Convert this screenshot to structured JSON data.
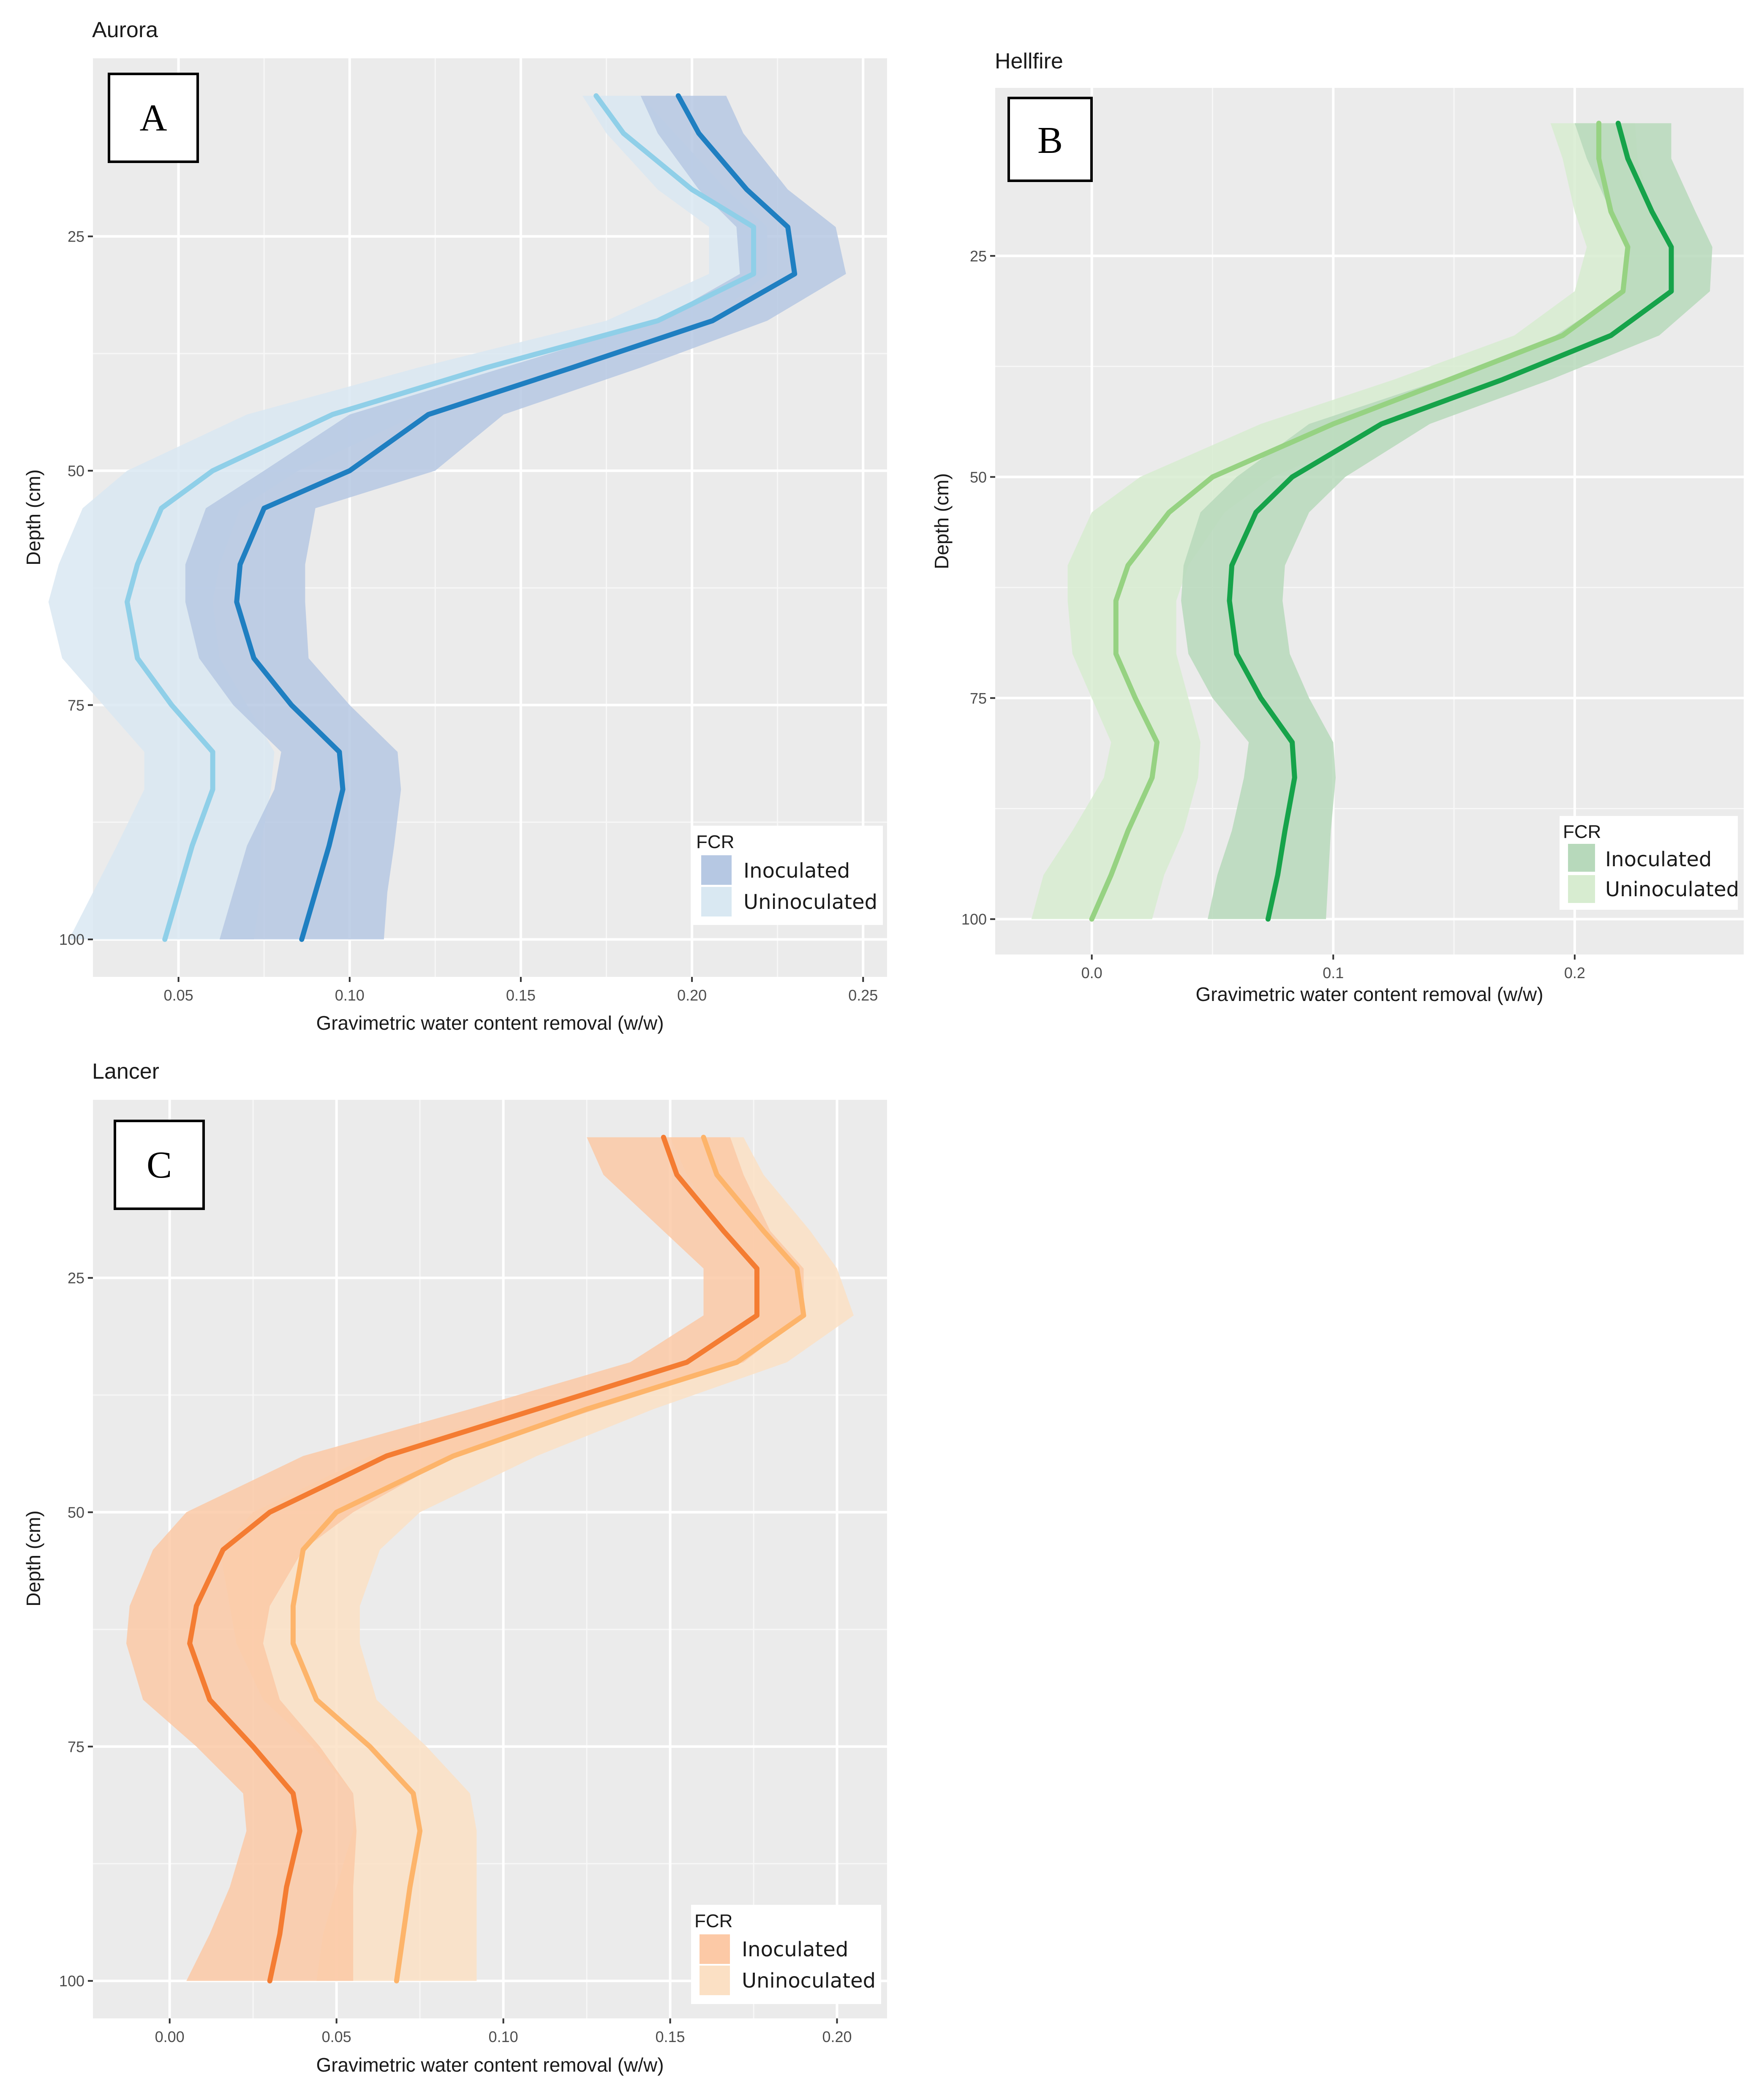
{
  "chart_data": [
    {
      "type": "line",
      "panel_label": "A",
      "title": "Aurora",
      "xlabel": "Gravimetric water content removal (w/w)",
      "ylabel": "Depth (cm)",
      "xlim": [
        0.025,
        0.257
      ],
      "ylim": [
        6,
        104
      ],
      "xticks": [
        0.05,
        0.1,
        0.15,
        0.2,
        0.25
      ],
      "xtick_labels": [
        "0.05",
        "0.10",
        "0.15",
        "0.20",
        "0.25"
      ],
      "yticks": [
        25,
        50,
        75,
        100
      ],
      "ytick_labels": [
        "25",
        "50",
        "75",
        "100"
      ],
      "legend_title": "FCR",
      "legend_position": "bottom-right",
      "series": [
        {
          "name": "Inoculated",
          "line_color": "#1f7fc1",
          "band_color": "#b6c8e3",
          "depth": [
            10,
            14,
            20,
            24,
            29,
            34,
            39,
            44,
            50,
            54,
            60,
            64,
            70,
            75,
            80,
            84,
            90,
            95,
            100
          ],
          "values": [
            0.196,
            0.202,
            0.216,
            0.228,
            0.23,
            0.206,
            0.165,
            0.123,
            0.1,
            0.075,
            0.068,
            0.067,
            0.072,
            0.083,
            0.097,
            0.098,
            0.094,
            0.09,
            0.086
          ],
          "lower": [
            0.185,
            0.19,
            0.202,
            0.213,
            0.214,
            0.19,
            0.145,
            0.1,
            0.075,
            0.058,
            0.052,
            0.052,
            0.056,
            0.066,
            0.08,
            0.078,
            0.07,
            0.066,
            0.062
          ],
          "upper": [
            0.21,
            0.215,
            0.228,
            0.242,
            0.245,
            0.222,
            0.185,
            0.145,
            0.125,
            0.09,
            0.087,
            0.087,
            0.088,
            0.1,
            0.114,
            0.115,
            0.113,
            0.111,
            0.11
          ]
        },
        {
          "name": "Uninoculated",
          "line_color": "#8fcfe8",
          "band_color": "#d9e8f2",
          "depth": [
            10,
            14,
            20,
            24,
            29,
            34,
            39,
            44,
            50,
            54,
            60,
            64,
            70,
            75,
            80,
            84,
            90,
            95,
            100
          ],
          "values": [
            0.172,
            0.18,
            0.2,
            0.218,
            0.218,
            0.19,
            0.14,
            0.095,
            0.06,
            0.045,
            0.038,
            0.035,
            0.038,
            0.048,
            0.06,
            0.06,
            0.054,
            0.05,
            0.046
          ],
          "lower": [
            0.168,
            0.175,
            0.19,
            0.205,
            0.205,
            0.175,
            0.12,
            0.07,
            0.035,
            0.022,
            0.015,
            0.012,
            0.016,
            0.028,
            0.04,
            0.04,
            0.032,
            0.025,
            0.018
          ],
          "upper": [
            0.185,
            0.195,
            0.21,
            0.222,
            0.222,
            0.205,
            0.16,
            0.12,
            0.085,
            0.068,
            0.062,
            0.06,
            0.062,
            0.07,
            0.078,
            0.077,
            0.074,
            0.074,
            0.072
          ]
        }
      ]
    },
    {
      "type": "line",
      "panel_label": "B",
      "title": "Hellfire",
      "xlabel": "Gravimetric water content removal (w/w)",
      "ylabel": "Depth (cm)",
      "xlim": [
        -0.04,
        0.27
      ],
      "ylim": [
        6,
        104
      ],
      "xticks": [
        0.0,
        0.1,
        0.2
      ],
      "xtick_labels": [
        "0.0",
        "0.1",
        "0.2"
      ],
      "yticks": [
        25,
        50,
        75,
        100
      ],
      "ytick_labels": [
        "25",
        "50",
        "75",
        "100"
      ],
      "legend_title": "FCR",
      "legend_position": "bottom-right",
      "series": [
        {
          "name": "Inoculated",
          "line_color": "#16a34a",
          "band_color": "#b7d9bb",
          "depth": [
            10,
            14,
            20,
            24,
            29,
            34,
            39,
            44,
            50,
            54,
            60,
            64,
            70,
            75,
            80,
            84,
            90,
            95,
            100
          ],
          "values": [
            0.218,
            0.222,
            0.232,
            0.24,
            0.24,
            0.215,
            0.17,
            0.12,
            0.083,
            0.068,
            0.058,
            0.057,
            0.06,
            0.07,
            0.083,
            0.084,
            0.08,
            0.077,
            0.073
          ],
          "lower": [
            0.2,
            0.205,
            0.215,
            0.222,
            0.22,
            0.192,
            0.145,
            0.09,
            0.06,
            0.045,
            0.038,
            0.037,
            0.04,
            0.05,
            0.065,
            0.063,
            0.058,
            0.052,
            0.048
          ],
          "upper": [
            0.24,
            0.24,
            0.25,
            0.257,
            0.256,
            0.235,
            0.19,
            0.14,
            0.105,
            0.09,
            0.08,
            0.079,
            0.082,
            0.09,
            0.1,
            0.101,
            0.099,
            0.098,
            0.097
          ]
        },
        {
          "name": "Uninoculated",
          "line_color": "#96d282",
          "band_color": "#d7ecd0",
          "depth": [
            10,
            14,
            20,
            24,
            29,
            34,
            39,
            44,
            50,
            54,
            60,
            64,
            70,
            75,
            80,
            84,
            90,
            95,
            100
          ],
          "values": [
            0.21,
            0.21,
            0.215,
            0.222,
            0.22,
            0.195,
            0.148,
            0.1,
            0.05,
            0.032,
            0.015,
            0.01,
            0.01,
            0.018,
            0.027,
            0.025,
            0.015,
            0.008,
            0.0
          ],
          "lower": [
            0.19,
            0.195,
            0.2,
            0.205,
            0.2,
            0.175,
            0.125,
            0.07,
            0.02,
            0.0,
            -0.01,
            -0.01,
            -0.008,
            0.0,
            0.008,
            0.005,
            -0.008,
            -0.02,
            -0.025
          ],
          "upper": [
            0.225,
            0.226,
            0.232,
            0.24,
            0.237,
            0.215,
            0.17,
            0.125,
            0.075,
            0.055,
            0.04,
            0.035,
            0.035,
            0.04,
            0.045,
            0.044,
            0.038,
            0.03,
            0.025
          ]
        }
      ]
    },
    {
      "type": "line",
      "panel_label": "C",
      "title": "Lancer",
      "xlabel": "Gravimetric water content removal (w/w)",
      "ylabel": "Depth (cm)",
      "xlim": [
        -0.023,
        0.215
      ],
      "ylim": [
        6,
        104
      ],
      "xticks": [
        0.0,
        0.05,
        0.1,
        0.15,
        0.2
      ],
      "xtick_labels": [
        "0.00",
        "0.05",
        "0.10",
        "0.15",
        "0.20"
      ],
      "yticks": [
        25,
        50,
        75,
        100
      ],
      "ytick_labels": [
        "25",
        "50",
        "75",
        "100"
      ],
      "legend_title": "FCR",
      "legend_position": "bottom-right",
      "series": [
        {
          "name": "Inoculated",
          "line_color": "#f47c32",
          "band_color": "#fcc9a6",
          "depth": [
            10,
            14,
            20,
            24,
            29,
            34,
            39,
            44,
            50,
            54,
            60,
            64,
            70,
            75,
            80,
            84,
            90,
            95,
            100
          ],
          "values": [
            0.148,
            0.152,
            0.166,
            0.176,
            0.176,
            0.155,
            0.11,
            0.065,
            0.03,
            0.016,
            0.008,
            0.006,
            0.012,
            0.025,
            0.037,
            0.039,
            0.035,
            0.033,
            0.03
          ],
          "lower": [
            0.125,
            0.13,
            0.148,
            0.16,
            0.16,
            0.138,
            0.09,
            0.04,
            0.005,
            -0.005,
            -0.012,
            -0.013,
            -0.008,
            0.008,
            0.022,
            0.023,
            0.018,
            0.012,
            0.005
          ],
          "upper": [
            0.168,
            0.172,
            0.18,
            0.19,
            0.19,
            0.172,
            0.128,
            0.085,
            0.055,
            0.04,
            0.03,
            0.028,
            0.033,
            0.045,
            0.055,
            0.056,
            0.055,
            0.055,
            0.055
          ]
        },
        {
          "name": "Uninoculated",
          "line_color": "#fdb46a",
          "band_color": "#fbe0c4",
          "depth": [
            10,
            14,
            20,
            24,
            29,
            34,
            39,
            44,
            50,
            54,
            60,
            64,
            70,
            75,
            80,
            84,
            90,
            95,
            100
          ],
          "values": [
            0.16,
            0.164,
            0.178,
            0.188,
            0.19,
            0.17,
            0.125,
            0.085,
            0.05,
            0.04,
            0.037,
            0.037,
            0.044,
            0.06,
            0.073,
            0.075,
            0.072,
            0.07,
            0.068
          ],
          "lower": [
            0.15,
            0.155,
            0.165,
            0.175,
            0.176,
            0.155,
            0.105,
            0.06,
            0.025,
            0.015,
            0.018,
            0.02,
            0.028,
            0.043,
            0.055,
            0.055,
            0.05,
            0.046,
            0.044
          ],
          "upper": [
            0.172,
            0.178,
            0.192,
            0.2,
            0.205,
            0.185,
            0.145,
            0.11,
            0.075,
            0.063,
            0.057,
            0.057,
            0.062,
            0.077,
            0.09,
            0.092,
            0.092,
            0.092,
            0.092
          ]
        }
      ]
    }
  ]
}
